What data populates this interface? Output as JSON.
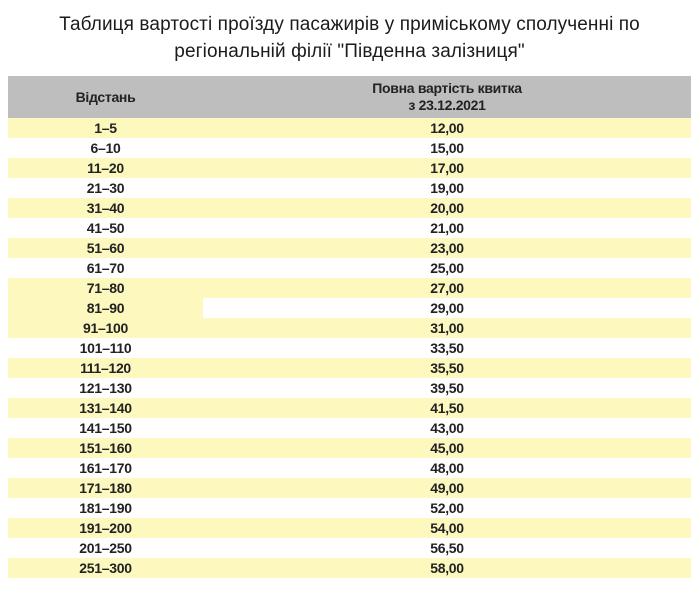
{
  "title": {
    "line1": "Таблиця вартості проїзду пасажирів у приміському сполученні по",
    "line2": "регіональній філії \"Південна залізниця\""
  },
  "colors": {
    "header_bg": "#BEBEBE",
    "row_yellow": "#FCF8BE",
    "row_white": "#FFFFFF",
    "text": "#222222"
  },
  "table": {
    "header": {
      "distance": "Відстань",
      "price_line1": "Повна вартість квитка",
      "price_line2": "з 23.12.2021"
    },
    "rows": [
      {
        "distance": "1–5",
        "price": "12,00",
        "distance_shade": "yellow",
        "price_shade": "yellow"
      },
      {
        "distance": "6–10",
        "price": "15,00",
        "distance_shade": "white",
        "price_shade": "white"
      },
      {
        "distance": "11–20",
        "price": "17,00",
        "distance_shade": "yellow",
        "price_shade": "yellow"
      },
      {
        "distance": "21–30",
        "price": "19,00",
        "distance_shade": "white",
        "price_shade": "white"
      },
      {
        "distance": "31–40",
        "price": "20,00",
        "distance_shade": "yellow",
        "price_shade": "yellow"
      },
      {
        "distance": "41–50",
        "price": "21,00",
        "distance_shade": "white",
        "price_shade": "white"
      },
      {
        "distance": "51–60",
        "price": "23,00",
        "distance_shade": "yellow",
        "price_shade": "yellow"
      },
      {
        "distance": "61–70",
        "price": "25,00",
        "distance_shade": "white",
        "price_shade": "white"
      },
      {
        "distance": "71–80",
        "price": "27,00",
        "distance_shade": "yellow",
        "price_shade": "yellow"
      },
      {
        "distance": "81–90",
        "price": "29,00",
        "distance_shade": "yellow",
        "price_shade": "white"
      },
      {
        "distance": "91–100",
        "price": "31,00",
        "distance_shade": "yellow",
        "price_shade": "yellow"
      },
      {
        "distance": "101–110",
        "price": "33,50",
        "distance_shade": "white",
        "price_shade": "white"
      },
      {
        "distance": "111–120",
        "price": "35,50",
        "distance_shade": "yellow",
        "price_shade": "yellow"
      },
      {
        "distance": "121–130",
        "price": "39,50",
        "distance_shade": "white",
        "price_shade": "white"
      },
      {
        "distance": "131–140",
        "price": "41,50",
        "distance_shade": "yellow",
        "price_shade": "yellow"
      },
      {
        "distance": "141–150",
        "price": "43,00",
        "distance_shade": "white",
        "price_shade": "white"
      },
      {
        "distance": "151–160",
        "price": "45,00",
        "distance_shade": "yellow",
        "price_shade": "yellow"
      },
      {
        "distance": "161–170",
        "price": "48,00",
        "distance_shade": "white",
        "price_shade": "white"
      },
      {
        "distance": "171–180",
        "price": "49,00",
        "distance_shade": "yellow",
        "price_shade": "yellow"
      },
      {
        "distance": "181–190",
        "price": "52,00",
        "distance_shade": "white",
        "price_shade": "white"
      },
      {
        "distance": "191–200",
        "price": "54,00",
        "distance_shade": "yellow",
        "price_shade": "yellow"
      },
      {
        "distance": "201–250",
        "price": "56,50",
        "distance_shade": "white",
        "price_shade": "white"
      },
      {
        "distance": "251–300",
        "price": "58,00",
        "distance_shade": "yellow",
        "price_shade": "yellow"
      }
    ]
  },
  "chart_data": {
    "type": "table",
    "title": "Таблиця вартості проїзду пасажирів у приміському сполученні по регіональній філії \"Південна залізниця\"",
    "columns": [
      "Відстань",
      "Повна вартість квитка з 23.12.2021"
    ],
    "distances": [
      "1–5",
      "6–10",
      "11–20",
      "21–30",
      "31–40",
      "41–50",
      "51–60",
      "61–70",
      "71–80",
      "81–90",
      "91–100",
      "101–110",
      "111–120",
      "121–130",
      "131–140",
      "141–150",
      "151–160",
      "161–170",
      "171–180",
      "181–190",
      "191–200",
      "201–250",
      "251–300"
    ],
    "prices": [
      12.0,
      15.0,
      17.0,
      19.0,
      20.0,
      21.0,
      23.0,
      25.0,
      27.0,
      29.0,
      31.0,
      33.5,
      35.5,
      39.5,
      41.5,
      43.0,
      45.0,
      48.0,
      49.0,
      52.0,
      54.0,
      56.5,
      58.0
    ]
  }
}
